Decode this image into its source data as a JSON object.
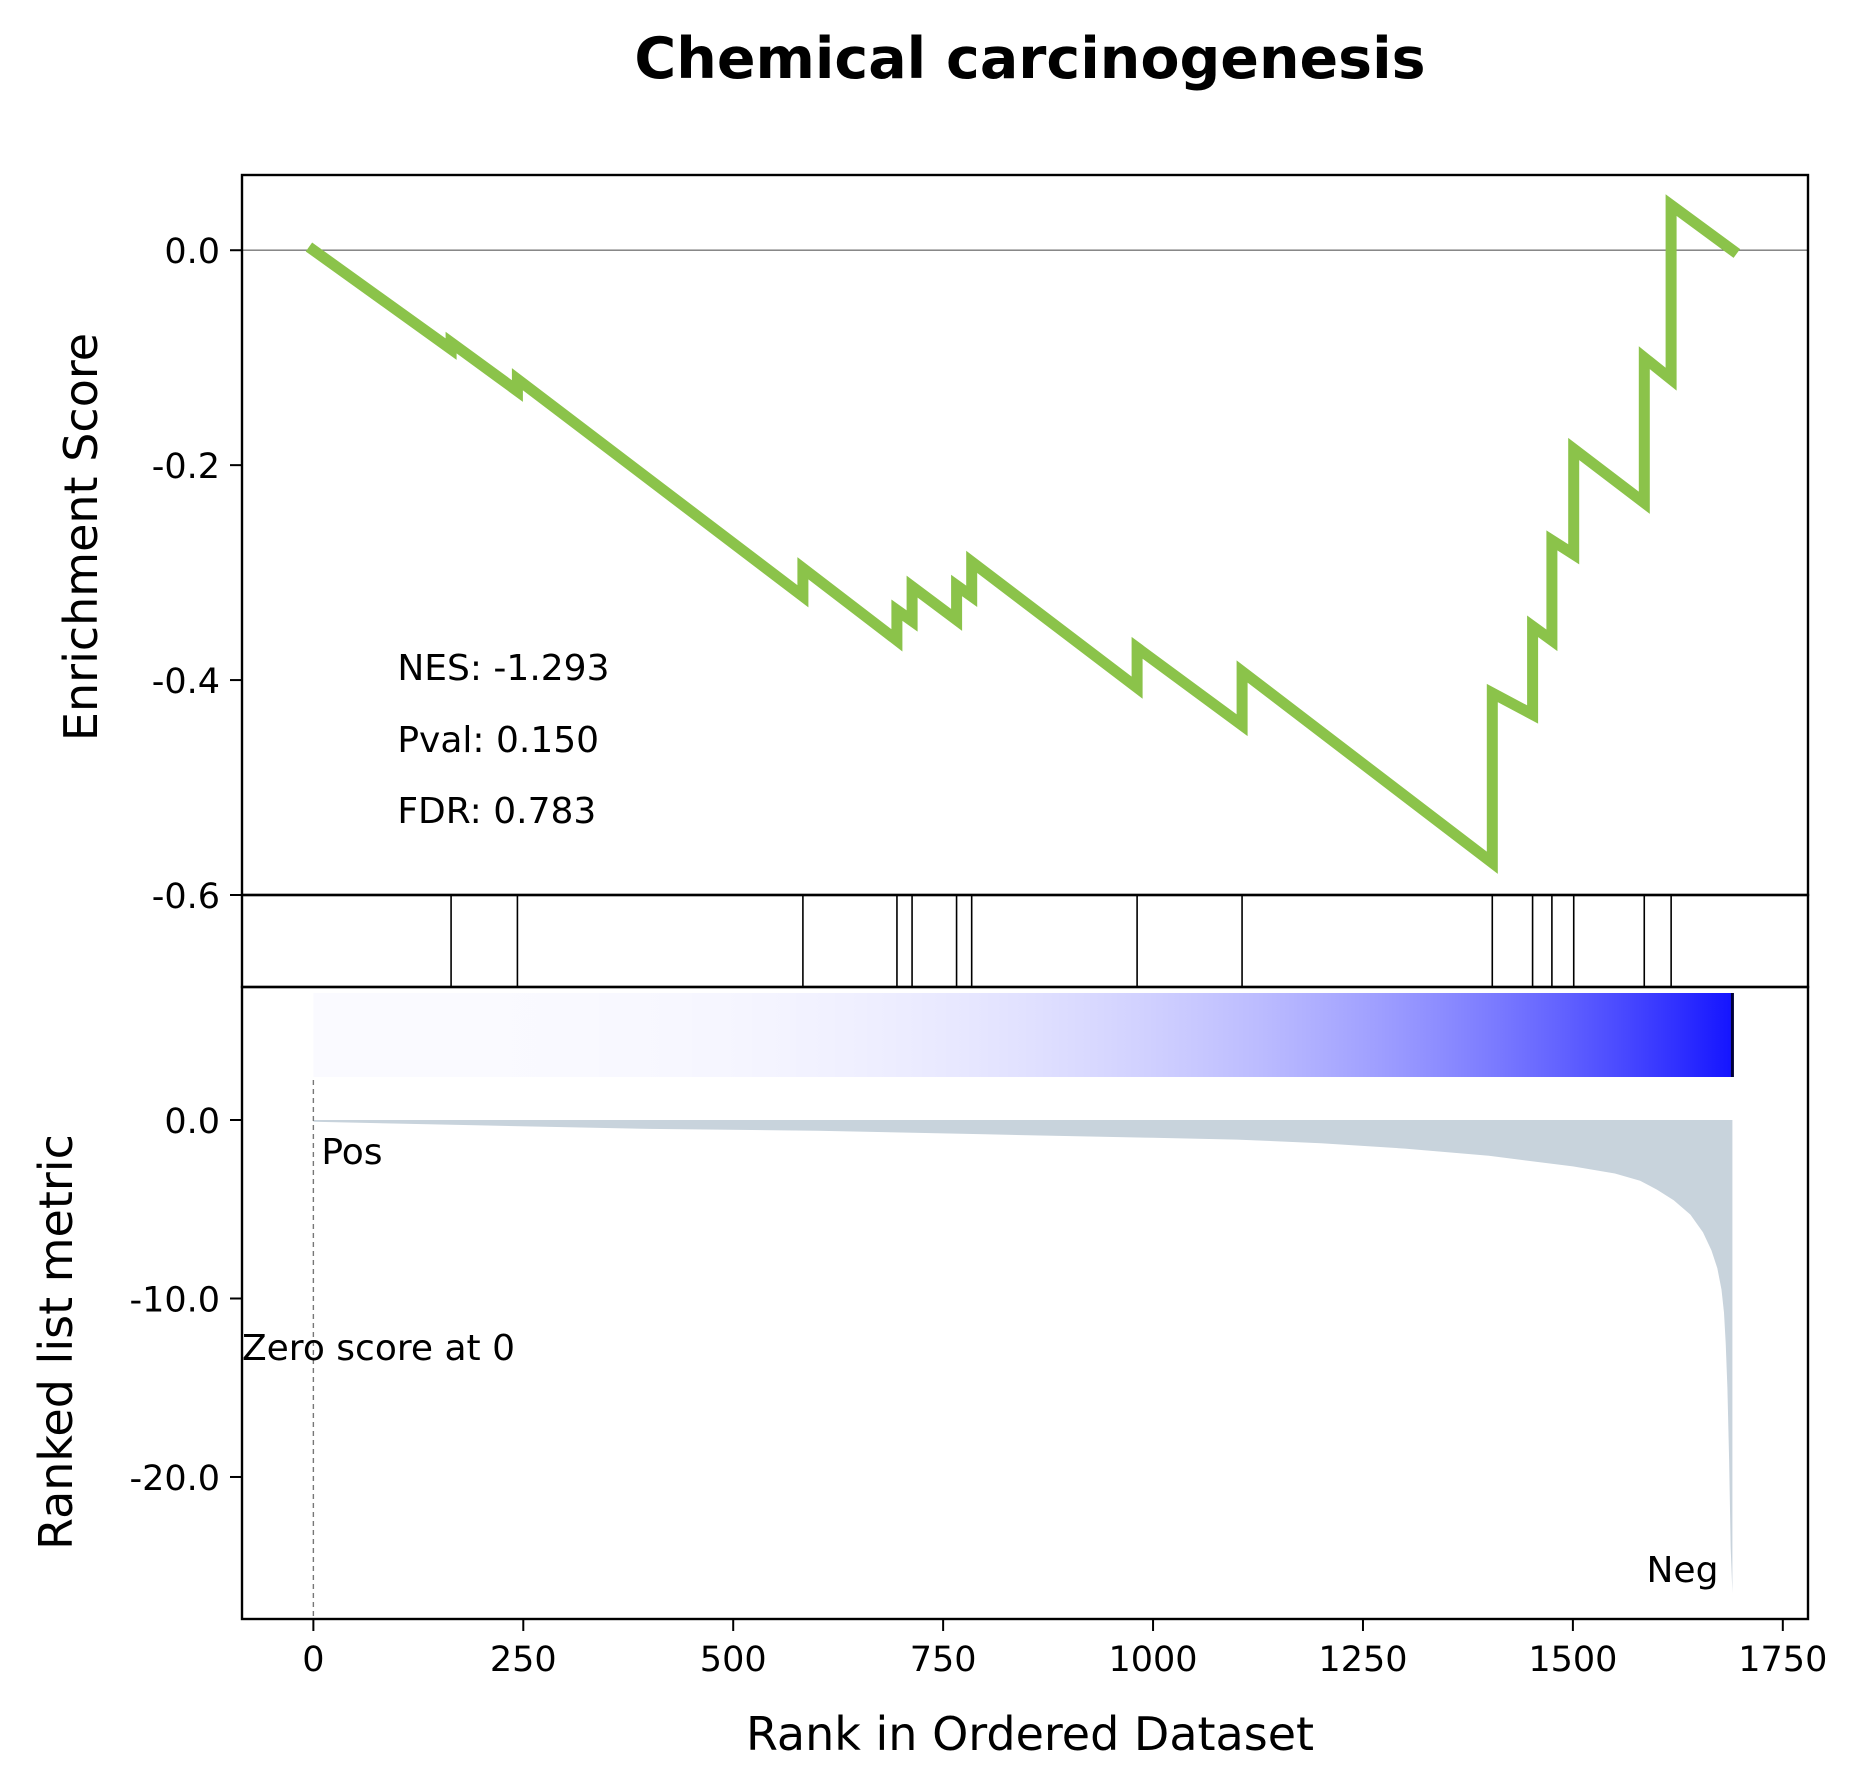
{
  "chart_data": {
    "type": "line",
    "title": "Chemical carcinogenesis",
    "xlabel": "Rank in Ordered Dataset",
    "top_panel": {
      "ylabel": "Enrichment Score",
      "ylim": [
        -0.6,
        0.07
      ],
      "yticks": [
        "0.0",
        "-0.2",
        "-0.4",
        "-0.6"
      ],
      "ytick_values": [
        0.0,
        -0.2,
        -0.4,
        -0.6
      ],
      "zero_line": true,
      "line_color": "#8bc34a",
      "series": [
        {
          "x": [
            0,
            164,
            164,
            243,
            243,
            583,
            583,
            695,
            695,
            713,
            713,
            766,
            766,
            784,
            784,
            981,
            981,
            1106,
            1106,
            1404,
            1404,
            1452,
            1452,
            1475,
            1475,
            1501,
            1501,
            1585,
            1585,
            1617,
            1617,
            1690
          ],
          "y": [
            0.0,
            -0.092,
            -0.086,
            -0.131,
            -0.12,
            -0.322,
            -0.296,
            -0.363,
            -0.335,
            -0.345,
            -0.313,
            -0.344,
            -0.312,
            -0.322,
            -0.29,
            -0.407,
            -0.37,
            -0.442,
            -0.392,
            -0.57,
            -0.412,
            -0.432,
            -0.35,
            -0.363,
            -0.27,
            -0.283,
            -0.185,
            -0.235,
            -0.1,
            -0.12,
            0.042,
            0.0
          ]
        }
      ],
      "annotations": [
        "NES: -1.293",
        "Pval: 0.150",
        "FDR: 0.783"
      ]
    },
    "hits_panel": {
      "hit_positions": [
        164,
        243,
        583,
        695,
        713,
        766,
        784,
        981,
        1106,
        1404,
        1452,
        1475,
        1501,
        1585,
        1617
      ]
    },
    "bottom_panel": {
      "ylabel": "Ranked list metric",
      "ylim": [
        -26.5,
        0
      ],
      "yticks": [
        "0.0",
        "-10.0",
        "-20.0"
      ],
      "ytick_values": [
        0,
        -10,
        -20
      ],
      "fill_color": "#c8d3dc",
      "profile_x": [
        0,
        200,
        400,
        600,
        800,
        1000,
        1100,
        1200,
        1300,
        1400,
        1450,
        1500,
        1550,
        1580,
        1600,
        1620,
        1640,
        1655,
        1665,
        1672,
        1677,
        1680,
        1682,
        1684,
        1686,
        1688,
        1690
      ],
      "profile_y": [
        -0.1,
        -0.3,
        -0.5,
        -0.6,
        -0.8,
        -1.0,
        -1.1,
        -1.3,
        -1.6,
        -2.0,
        -2.3,
        -2.6,
        -3.0,
        -3.4,
        -3.9,
        -4.5,
        -5.3,
        -6.3,
        -7.3,
        -8.3,
        -9.5,
        -10.8,
        -12.5,
        -15.0,
        -19.0,
        -24.0,
        -26.5
      ],
      "annotations": [
        "Zero score at 0"
      ],
      "pos_label": "Pos",
      "neg_label": "Neg",
      "pos_color": "#ff0000",
      "neg_color": "#0000ff",
      "heat_color": "#0000ff"
    },
    "xlim": [
      -85,
      1780
    ],
    "xticks": [
      "0",
      "250",
      "500",
      "750",
      "1000",
      "1250",
      "1500",
      "1750"
    ],
    "xtick_values": [
      0,
      250,
      500,
      750,
      1000,
      1250,
      1500,
      1750
    ],
    "n_ranks": 1690
  }
}
